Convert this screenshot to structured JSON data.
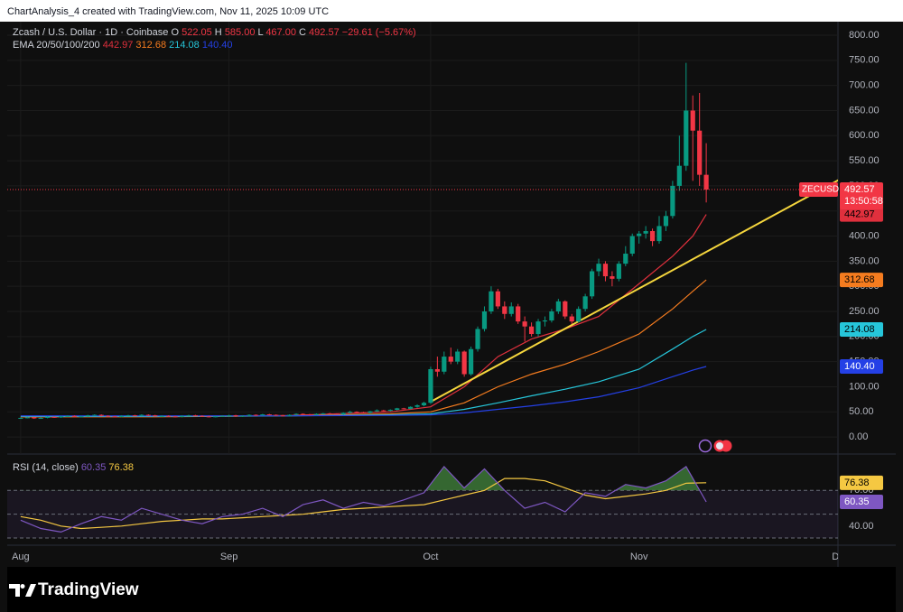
{
  "header": {
    "credit": "ChartAnalysis_4 created with TradingView.com, Nov 11, 2025 10:09 UTC"
  },
  "chart_data": {
    "type": "candlestick",
    "title": "Zcash / U.S. Dollar · 1D · Coinbase",
    "ohlc_legend": [
      {
        "label": "O",
        "value": "522.05"
      },
      {
        "label": "H",
        "value": "585.00"
      },
      {
        "label": "L",
        "value": "467.00"
      },
      {
        "label": "C",
        "value": "492.57"
      },
      {
        "label": "−29.61 (−5.67%)"
      }
    ],
    "up_color": "#089981",
    "down_color": "#f23645",
    "x": [
      0,
      1,
      2,
      3,
      4,
      5,
      6,
      7,
      8,
      9,
      10,
      11,
      12,
      13,
      14,
      15,
      16,
      17,
      18,
      19,
      20,
      21,
      22,
      23,
      24,
      25,
      26,
      27,
      28,
      29,
      30,
      31,
      32,
      33,
      34,
      35,
      36,
      37,
      38,
      39,
      40,
      41,
      42,
      43,
      44,
      45,
      46,
      47,
      48,
      49,
      50,
      51,
      52,
      53,
      54,
      55,
      56,
      57,
      58,
      59,
      60,
      61,
      62,
      63,
      64,
      65,
      66,
      67,
      68,
      69,
      70,
      71,
      72,
      73,
      74,
      75,
      76,
      77,
      78,
      79,
      80,
      81,
      82,
      83,
      84,
      85,
      86,
      87,
      88,
      89,
      90,
      91,
      92,
      93,
      94,
      95,
      96,
      97,
      98,
      99,
      100,
      101,
      102
    ],
    "ohlc": [
      [
        37,
        39,
        36,
        38
      ],
      [
        38,
        40,
        37,
        39
      ],
      [
        39,
        40,
        36,
        37
      ],
      [
        37,
        39,
        36,
        38
      ],
      [
        38,
        41,
        37,
        40
      ],
      [
        40,
        41,
        38,
        39
      ],
      [
        39,
        42,
        38,
        41
      ],
      [
        41,
        43,
        40,
        42
      ],
      [
        42,
        43,
        39,
        40
      ],
      [
        40,
        42,
        39,
        41
      ],
      [
        41,
        44,
        40,
        43
      ],
      [
        43,
        45,
        42,
        44
      ],
      [
        44,
        45,
        41,
        42
      ],
      [
        42,
        43,
        40,
        41
      ],
      [
        41,
        42,
        39,
        40
      ],
      [
        40,
        43,
        39,
        42
      ],
      [
        42,
        44,
        41,
        43
      ],
      [
        43,
        44,
        41,
        42
      ],
      [
        42,
        45,
        41,
        44
      ],
      [
        44,
        45,
        42,
        43
      ],
      [
        43,
        44,
        40,
        41
      ],
      [
        41,
        43,
        40,
        42
      ],
      [
        42,
        43,
        40,
        41
      ],
      [
        41,
        42,
        39,
        40
      ],
      [
        40,
        43,
        39,
        42
      ],
      [
        42,
        44,
        41,
        43
      ],
      [
        43,
        44,
        41,
        42
      ],
      [
        42,
        43,
        40,
        41
      ],
      [
        41,
        42,
        39,
        40
      ],
      [
        40,
        42,
        39,
        41
      ],
      [
        41,
        43,
        40,
        42
      ],
      [
        42,
        44,
        41,
        43
      ],
      [
        43,
        44,
        40,
        41
      ],
      [
        41,
        43,
        40,
        42
      ],
      [
        42,
        45,
        41,
        44
      ],
      [
        44,
        45,
        42,
        43
      ],
      [
        43,
        46,
        42,
        45
      ],
      [
        45,
        46,
        43,
        44
      ],
      [
        44,
        45,
        42,
        43
      ],
      [
        43,
        44,
        41,
        42
      ],
      [
        42,
        45,
        41,
        44
      ],
      [
        44,
        47,
        43,
        46
      ],
      [
        46,
        47,
        44,
        45
      ],
      [
        45,
        46,
        43,
        44
      ],
      [
        44,
        47,
        43,
        46
      ],
      [
        46,
        48,
        45,
        47
      ],
      [
        47,
        48,
        45,
        46
      ],
      [
        46,
        47,
        44,
        45
      ],
      [
        45,
        49,
        44,
        48
      ],
      [
        48,
        52,
        47,
        50
      ],
      [
        50,
        51,
        48,
        49
      ],
      [
        49,
        50,
        47,
        48
      ],
      [
        48,
        52,
        47,
        51
      ],
      [
        51,
        55,
        50,
        53
      ],
      [
        53,
        54,
        51,
        52
      ],
      [
        52,
        55,
        51,
        54
      ],
      [
        54,
        58,
        53,
        57
      ],
      [
        57,
        58,
        55,
        56
      ],
      [
        56,
        61,
        55,
        60
      ],
      [
        60,
        65,
        58,
        63
      ],
      [
        63,
        70,
        61,
        68
      ],
      [
        68,
        140,
        66,
        135
      ],
      [
        135,
        160,
        120,
        130
      ],
      [
        130,
        170,
        125,
        160
      ],
      [
        160,
        178,
        145,
        150
      ],
      [
        150,
        175,
        145,
        170
      ],
      [
        170,
        172,
        120,
        125
      ],
      [
        125,
        180,
        122,
        175
      ],
      [
        175,
        220,
        170,
        215
      ],
      [
        215,
        260,
        210,
        250
      ],
      [
        250,
        300,
        245,
        290
      ],
      [
        290,
        295,
        255,
        260
      ],
      [
        260,
        270,
        235,
        245
      ],
      [
        245,
        268,
        240,
        260
      ],
      [
        260,
        265,
        225,
        230
      ],
      [
        230,
        240,
        190,
        220
      ],
      [
        220,
        228,
        200,
        205
      ],
      [
        205,
        235,
        200,
        230
      ],
      [
        230,
        240,
        220,
        232
      ],
      [
        232,
        255,
        228,
        250
      ],
      [
        250,
        275,
        245,
        270
      ],
      [
        270,
        272,
        235,
        240
      ],
      [
        240,
        245,
        225,
        230
      ],
      [
        230,
        260,
        228,
        255
      ],
      [
        255,
        285,
        250,
        280
      ],
      [
        280,
        335,
        275,
        330
      ],
      [
        330,
        355,
        320,
        345
      ],
      [
        345,
        350,
        310,
        320
      ],
      [
        320,
        330,
        300,
        315
      ],
      [
        315,
        350,
        310,
        345
      ],
      [
        345,
        380,
        340,
        365
      ],
      [
        365,
        405,
        360,
        400
      ],
      [
        400,
        410,
        385,
        405
      ],
      [
        405,
        420,
        395,
        410
      ],
      [
        410,
        415,
        380,
        390
      ],
      [
        390,
        440,
        385,
        420
      ],
      [
        420,
        450,
        410,
        440
      ],
      [
        440,
        510,
        435,
        500
      ],
      [
        500,
        600,
        490,
        540
      ],
      [
        540,
        745,
        530,
        650
      ],
      [
        650,
        680,
        510,
        610
      ],
      [
        610,
        685,
        500,
        522.05
      ],
      [
        522.05,
        585,
        467,
        492.57
      ]
    ],
    "xlim": [
      -2,
      121.6
    ],
    "xticks": [
      {
        "value": 0,
        "label": "Aug"
      },
      {
        "value": 31,
        "label": "Sep"
      },
      {
        "value": 61,
        "label": "Oct"
      },
      {
        "value": 92,
        "label": "Nov"
      },
      {
        "value": 122,
        "label": "Dec"
      }
    ],
    "ylim": [
      -34,
      827
    ],
    "yticks": [
      {
        "value": 0,
        "label": "0.00"
      },
      {
        "value": 50,
        "label": "50.00"
      },
      {
        "value": 100,
        "label": "100.00"
      },
      {
        "value": 150,
        "label": "150.00"
      },
      {
        "value": 200,
        "label": "200.00"
      },
      {
        "value": 250,
        "label": "250.00"
      },
      {
        "value": 300,
        "label": "300.00"
      },
      {
        "value": 350,
        "label": "350.00"
      },
      {
        "value": 400,
        "label": "400.00"
      },
      {
        "value": 450,
        "label": "450.00"
      },
      {
        "value": 500,
        "label": "500.00"
      },
      {
        "value": 550,
        "label": "550.00"
      },
      {
        "value": 600,
        "label": "600.00"
      },
      {
        "value": 650,
        "label": "650.00"
      },
      {
        "value": 700,
        "label": "700.00"
      },
      {
        "value": 750,
        "label": "750.00"
      },
      {
        "value": 800,
        "label": "800.00"
      }
    ],
    "last_price": {
      "symbol": "ZECUSD",
      "value": 492.57,
      "label": "492.57",
      "countdown": "13:50:58",
      "color": "#f23645"
    },
    "ema_title": "EMA 20/50/100/200",
    "emas": [
      {
        "color": "#e0303d",
        "x": [
          0,
          20,
          40,
          55,
          61,
          66,
          71,
          76,
          81,
          86,
          92,
          97,
          100,
          102
        ],
        "values": [
          40,
          41,
          43,
          50,
          60,
          100,
          160,
          195,
          215,
          240,
          305,
          360,
          400,
          442.97
        ],
        "last_label": "442.97"
      },
      {
        "color": "#f57c1f",
        "x": [
          0,
          20,
          40,
          55,
          61,
          66,
          71,
          76,
          81,
          86,
          92,
          97,
          100,
          102
        ],
        "values": [
          40,
          40,
          42,
          46,
          50,
          68,
          100,
          125,
          145,
          170,
          205,
          255,
          290,
          312.68
        ],
        "last_label": "312.68"
      },
      {
        "color": "#26c6da",
        "x": [
          0,
          20,
          40,
          55,
          61,
          66,
          71,
          76,
          81,
          86,
          92,
          97,
          100,
          102
        ],
        "values": [
          41,
          41,
          42,
          44,
          46,
          55,
          68,
          82,
          95,
          110,
          135,
          175,
          200,
          214.08
        ],
        "last_label": "214.08"
      },
      {
        "color": "#2440e6",
        "x": [
          0,
          20,
          40,
          55,
          61,
          66,
          71,
          76,
          81,
          86,
          92,
          97,
          100,
          102
        ],
        "values": [
          42,
          42,
          42,
          43,
          44,
          48,
          55,
          62,
          70,
          80,
          98,
          120,
          133,
          140.4
        ],
        "last_label": "140.40"
      }
    ],
    "trendline": {
      "color": "#f5d63d",
      "x": [
        61,
        122
      ],
      "values": [
        70,
        514
      ]
    },
    "rsi": {
      "title": "RSI (14, close)",
      "color": "#7e57c2",
      "ma_color": "#f5c842",
      "fill_color": "#3f7d3a",
      "ylim": [
        27,
        99
      ],
      "yticks": [
        {
          "value": 40,
          "label": "40.00"
        },
        {
          "value": 70,
          "label": "70.00"
        }
      ],
      "bands": [
        70,
        50,
        30
      ],
      "x": [
        0,
        3,
        6,
        9,
        12,
        15,
        18,
        21,
        24,
        27,
        30,
        33,
        36,
        39,
        42,
        45,
        48,
        51,
        54,
        57,
        60,
        63,
        66,
        69,
        72,
        75,
        78,
        81,
        84,
        87,
        90,
        93,
        96,
        99,
        102
      ],
      "values": [
        45,
        38,
        35,
        42,
        48,
        45,
        55,
        50,
        45,
        42,
        48,
        50,
        55,
        48,
        58,
        62,
        55,
        60,
        57,
        62,
        68,
        90,
        72,
        88,
        70,
        55,
        60,
        52,
        68,
        65,
        75,
        72,
        78,
        90,
        60.35
      ],
      "ma_values": [
        48,
        45,
        40,
        38,
        39,
        40,
        42,
        44,
        45,
        46,
        46,
        47,
        48,
        49,
        50,
        52,
        54,
        55,
        56,
        57,
        58,
        62,
        66,
        70,
        80,
        80,
        78,
        72,
        66,
        63,
        65,
        67,
        70,
        76,
        76.38
      ],
      "last_label": "60.35",
      "ma_last_label": "76.38"
    }
  },
  "footer": {
    "brand": "TradingView"
  }
}
